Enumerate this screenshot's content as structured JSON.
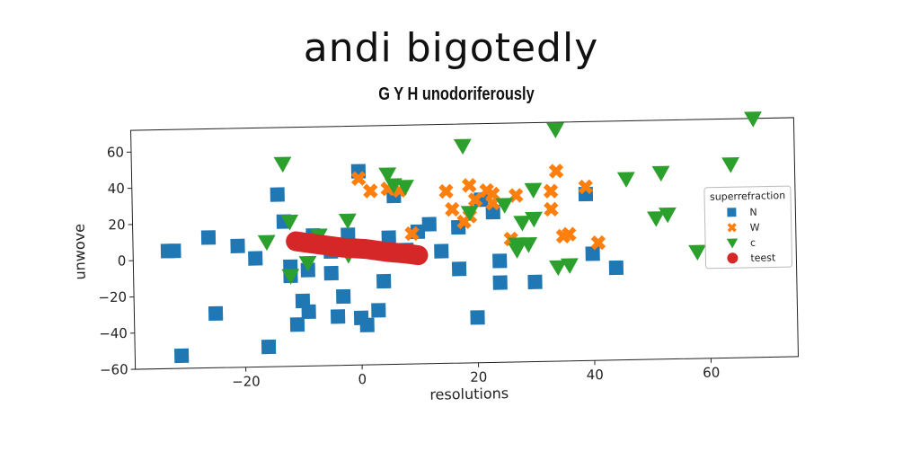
{
  "title": "andi bigotedly",
  "subtitle": "G Y H unodoriferously",
  "chart_data": {
    "type": "scatter",
    "xlabel": "resolutions",
    "ylabel": "unwove",
    "xlim": [
      -39,
      75
    ],
    "ylim": [
      -60,
      72
    ],
    "xticks": [
      -20,
      0,
      20,
      40,
      60
    ],
    "yticks": [
      -60,
      -40,
      -20,
      0,
      20,
      40,
      60
    ],
    "legend_title": "superrefraction",
    "legend_position": "right",
    "series": [
      {
        "name": "N",
        "marker": "square",
        "color": "#1f77b4",
        "points": [
          [
            -33,
            5
          ],
          [
            -32,
            5
          ],
          [
            -31,
            -53
          ],
          [
            -26,
            12
          ],
          [
            -25,
            -30
          ],
          [
            -21,
            7
          ],
          [
            -18,
            0
          ],
          [
            -16,
            -49
          ],
          [
            -14,
            35
          ],
          [
            -13,
            20
          ],
          [
            -12,
            -5
          ],
          [
            -12,
            -10
          ],
          [
            -11,
            -37
          ],
          [
            -10,
            -24
          ],
          [
            -9,
            -7
          ],
          [
            -9,
            -30
          ],
          [
            -8,
            12
          ],
          [
            -5,
            -9
          ],
          [
            -5,
            3
          ],
          [
            -4,
            -33
          ],
          [
            -3,
            -22
          ],
          [
            -2,
            12
          ],
          [
            0,
            47
          ],
          [
            0,
            -34
          ],
          [
            1,
            -38
          ],
          [
            3,
            -30
          ],
          [
            4,
            -14
          ],
          [
            5,
            10
          ],
          [
            6,
            33
          ],
          [
            8,
            3
          ],
          [
            10,
            13
          ],
          [
            12,
            17
          ],
          [
            14,
            2
          ],
          [
            17,
            15
          ],
          [
            17,
            -8
          ],
          [
            20,
            -35
          ],
          [
            21,
            30
          ],
          [
            23,
            23
          ],
          [
            24,
            -16
          ],
          [
            24,
            -4
          ],
          [
            30,
            -16
          ],
          [
            39,
            32
          ],
          [
            40,
            -1
          ],
          [
            44,
            -9
          ]
        ]
      },
      {
        "name": "W",
        "marker": "x",
        "color": "#ff7f0e",
        "points": [
          [
            0,
            43
          ],
          [
            2,
            36
          ],
          [
            5,
            37
          ],
          [
            7,
            36
          ],
          [
            9,
            12
          ],
          [
            15,
            35
          ],
          [
            16,
            25
          ],
          [
            18,
            18
          ],
          [
            19,
            21
          ],
          [
            19,
            38
          ],
          [
            20,
            30
          ],
          [
            22,
            35
          ],
          [
            23,
            33
          ],
          [
            23,
            28
          ],
          [
            26,
            8
          ],
          [
            27,
            32
          ],
          [
            33,
            34
          ],
          [
            33,
            24
          ],
          [
            34,
            45
          ],
          [
            35,
            9
          ],
          [
            36,
            10
          ],
          [
            39,
            36
          ],
          [
            41,
            5
          ]
        ]
      },
      {
        "name": "c",
        "marker": "triangle-down",
        "color": "#2ca02c",
        "points": [
          [
            -13,
            52
          ],
          [
            -16,
            9
          ],
          [
            -12,
            20
          ],
          [
            -12,
            -10
          ],
          [
            -9,
            -3
          ],
          [
            -7,
            12
          ],
          [
            -2,
            20
          ],
          [
            -2,
            1
          ],
          [
            5,
            45
          ],
          [
            6,
            39
          ],
          [
            8,
            38
          ],
          [
            18,
            60
          ],
          [
            19,
            23
          ],
          [
            25,
            27
          ],
          [
            27,
            5
          ],
          [
            27,
            2
          ],
          [
            28,
            17
          ],
          [
            29,
            5
          ],
          [
            30,
            19
          ],
          [
            30,
            35
          ],
          [
            34,
            68
          ],
          [
            34,
            -8
          ],
          [
            36,
            -7
          ],
          [
            46,
            40
          ],
          [
            51,
            18
          ],
          [
            52,
            43
          ],
          [
            53,
            20
          ],
          [
            58,
            -1
          ],
          [
            64,
            47
          ],
          [
            68,
            72
          ]
        ]
      },
      {
        "name": "teest",
        "marker": "line",
        "color": "#d62728",
        "points": [
          [
            -11,
            9
          ],
          [
            -7,
            7
          ],
          [
            -3,
            5
          ],
          [
            1,
            4
          ],
          [
            5,
            2
          ],
          [
            8,
            1
          ],
          [
            10,
            0
          ]
        ]
      }
    ]
  }
}
